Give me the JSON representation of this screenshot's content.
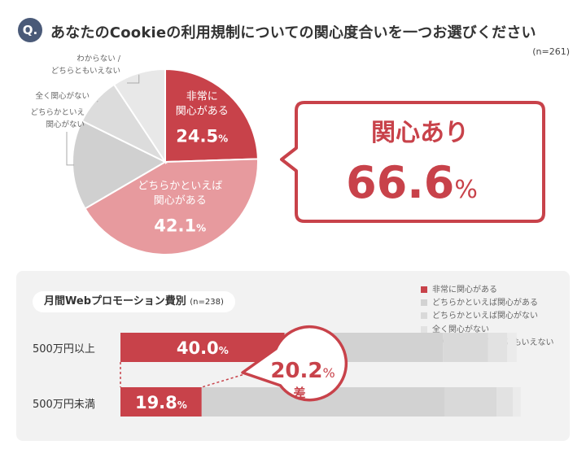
{
  "question": {
    "badge": "Q.",
    "title": "あなたのCookieの利用規制についての関心度合いを一つお選びください",
    "sample": "(n=261)"
  },
  "chart_data": [
    {
      "type": "pie",
      "title": "あなたのCookieの利用規制についての関心度合いを一つお選びください",
      "n": "(n=261)",
      "slices": [
        {
          "label": "非常に関心がある",
          "value": 24.5,
          "color": "#c8424a",
          "display": [
            "非常に",
            "関心がある"
          ],
          "value_text": "24.5",
          "unit": "%"
        },
        {
          "label": "どちらかといえば関心がある",
          "value": 42.1,
          "color": "#e79a9e",
          "display": [
            "どちらかといえば",
            "関心がある"
          ],
          "value_text": "42.1",
          "unit": "%"
        },
        {
          "label": "どちらかといえば関心がない",
          "value": 15.7,
          "color": "#d0d0d0",
          "display": [
            "どちらかといえ",
            "関心がない"
          ]
        },
        {
          "label": "全く関心がない",
          "value": 8.4,
          "color": "#dcdcdc",
          "display": [
            "全く関心がない"
          ]
        },
        {
          "label": "わからない / どちらともいえない",
          "value": 9.3,
          "color": "#e8e8e8",
          "display": [
            "わからない /",
            "どちらともいえない"
          ]
        }
      ]
    },
    {
      "type": "bar",
      "orientation": "horizontal-stacked",
      "title": "月間Webプロモーション費別",
      "n": "(n=238)",
      "categories": [
        "500万円以上",
        "500万円未満"
      ],
      "series": [
        {
          "name": "非常に関心がある",
          "color": "#c8424a",
          "values": [
            40.0,
            19.8
          ]
        },
        {
          "name": "どちらかといえば関心がある",
          "color": "#d2d2d2",
          "values": [
            38.6,
            59.3
          ]
        },
        {
          "name": "どちらかといえば関心がない",
          "color": "#d9d9d9",
          "values": [
            11.0,
            12.6
          ]
        },
        {
          "name": "全く関心がない",
          "color": "#e2e2e2",
          "values": [
            4.7,
            4.0
          ]
        },
        {
          "name": "わからない / どちらともいえない",
          "color": "#ebebeb",
          "values": [
            2.3,
            1.9
          ]
        }
      ],
      "value_labels": [
        "40.0",
        "19.8"
      ],
      "unit": "%"
    }
  ],
  "callout": {
    "label": "関心あり",
    "value": "66.6",
    "unit": "%"
  },
  "diff_callout": {
    "value": "20.2",
    "unit": "%",
    "label": "差"
  },
  "promo": {
    "title": "月間Webプロモーション費別",
    "n": "(n=238)"
  }
}
